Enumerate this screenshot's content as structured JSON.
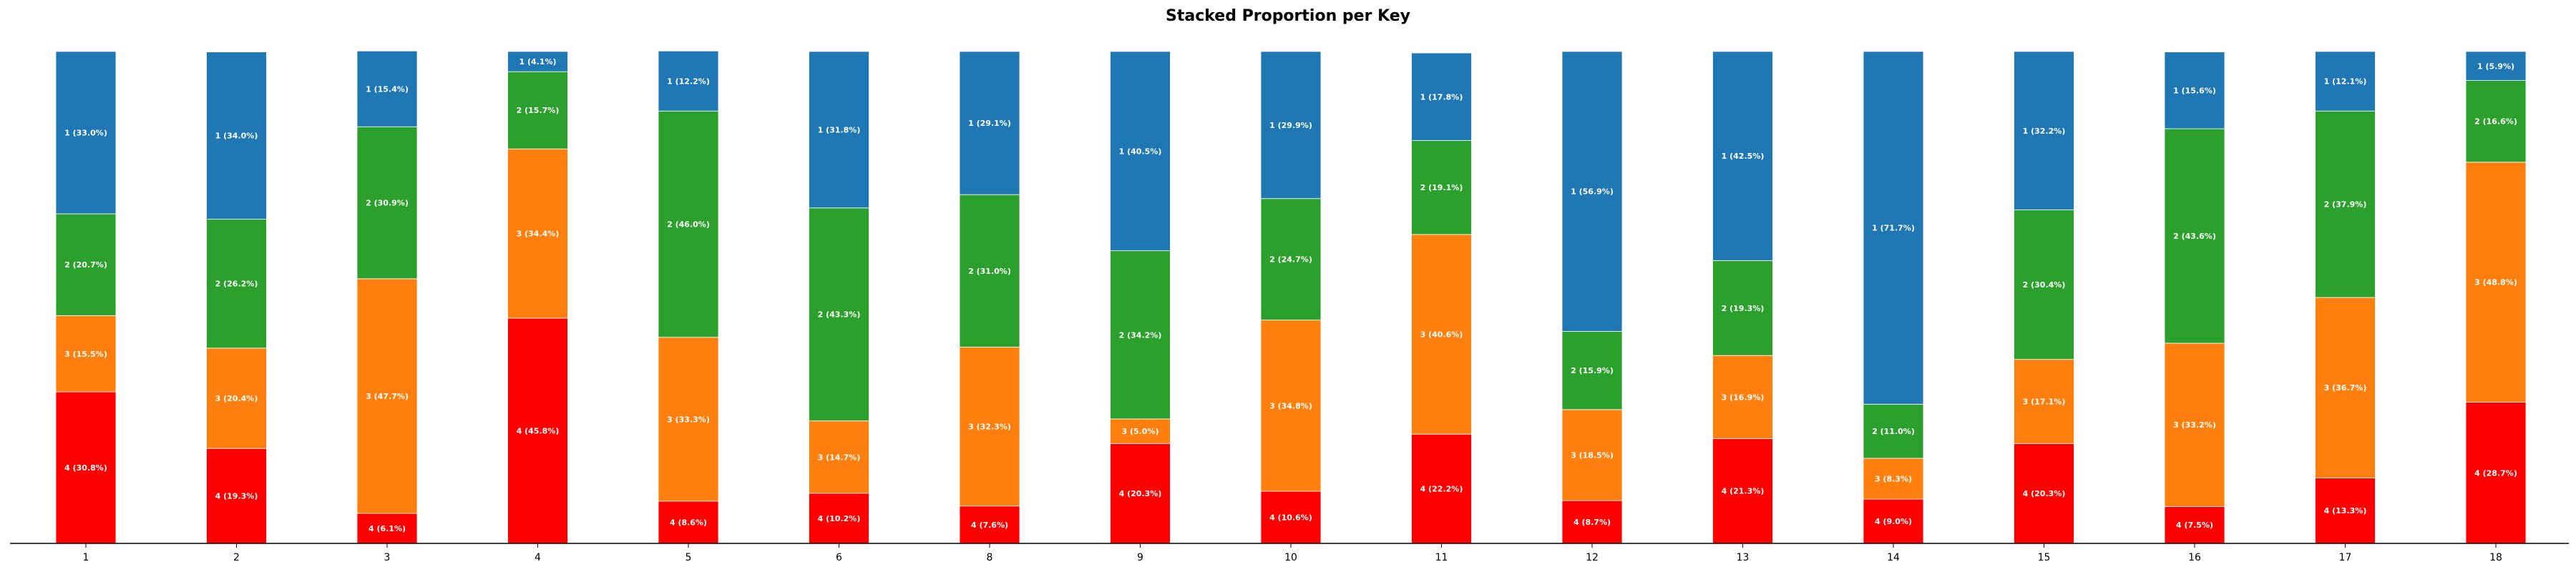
{
  "chart_data": {
    "type": "bar",
    "stacked": true,
    "title": "Stacked Proportion per Key",
    "xlabel": "",
    "ylabel": "",
    "ylim": [
      0,
      100
    ],
    "grid": false,
    "categories": [
      "1",
      "2",
      "3",
      "4",
      "5",
      "6",
      "8",
      "9",
      "10",
      "11",
      "12",
      "13",
      "14",
      "15",
      "16",
      "17",
      "18"
    ],
    "series": [
      {
        "key": "4",
        "color": "#ff0000",
        "values": [
          30.8,
          19.3,
          6.1,
          45.8,
          8.6,
          10.2,
          7.6,
          20.3,
          10.6,
          22.2,
          8.7,
          21.3,
          9.0,
          20.3,
          7.5,
          13.3,
          28.7
        ],
        "labels": [
          "4 (30.8%)",
          "4 (19.3%)",
          "4 (6.1%)",
          "4 (45.8%)",
          "4 (8.6%)",
          "4 (10.2%)",
          "4 (7.6%)",
          "4 (20.3%)",
          "4 (10.6%)",
          "4 (22.2%)",
          "4 (8.7%)",
          "4 (21.3%)",
          "4 (9.0%)",
          "4 (20.3%)",
          "4 (7.5%)",
          "4 (13.3%)",
          "4 (28.7%)"
        ]
      },
      {
        "key": "3",
        "color": "#ff7f0e",
        "values": [
          15.5,
          20.4,
          47.7,
          34.4,
          33.3,
          14.7,
          32.3,
          5.0,
          34.8,
          40.6,
          18.5,
          16.9,
          8.3,
          17.1,
          33.2,
          36.7,
          48.8
        ],
        "labels": [
          "3 (15.5%)",
          "3 (20.4%)",
          "3 (47.7%)",
          "3 (34.4%)",
          "3 (33.3%)",
          "3 (14.7%)",
          "3 (32.3%)",
          "3 (5.0%)",
          "3 (34.8%)",
          "3 (40.6%)",
          "3 (18.5%)",
          "3 (16.9%)",
          "3 (8.3%)",
          "3 (17.1%)",
          "3 (33.2%)",
          "3 (36.7%)",
          "3 (48.8%)"
        ]
      },
      {
        "key": "2",
        "color": "#2ca02c",
        "values": [
          20.7,
          26.2,
          30.9,
          15.7,
          46.0,
          43.3,
          31.0,
          34.2,
          24.7,
          19.1,
          15.9,
          19.3,
          11.0,
          30.4,
          43.6,
          37.9,
          16.6
        ],
        "labels": [
          "2 (20.7%)",
          "2 (26.2%)",
          "2 (30.9%)",
          "2 (15.7%)",
          "2 (46.0%)",
          "2 (43.3%)",
          "2 (31.0%)",
          "2 (34.2%)",
          "2 (24.7%)",
          "2 (19.1%)",
          "2 (15.9%)",
          "2 (19.3%)",
          "2 (11.0%)",
          "2 (30.4%)",
          "2 (43.6%)",
          "2 (37.9%)",
          "2 (16.6%)"
        ]
      },
      {
        "key": "1",
        "color": "#1f77b4",
        "values": [
          33.0,
          34.0,
          15.4,
          4.1,
          12.2,
          31.8,
          29.1,
          40.5,
          29.9,
          17.8,
          56.9,
          42.5,
          71.7,
          32.2,
          15.6,
          12.1,
          5.9
        ],
        "labels": [
          "1 (33.0%)",
          "1 (34.0%)",
          "1 (15.4%)",
          "1 (4.1%)",
          "1 (12.2%)",
          "1 (31.8%)",
          "1 (29.1%)",
          "1 (40.5%)",
          "1 (29.9%)",
          "1 (17.8%)",
          "1 (56.9%)",
          "1 (42.5%)",
          "1 (71.7%)",
          "1 (32.2%)",
          "1 (15.6%)",
          "1 (12.1%)",
          "1 (5.9%)"
        ]
      }
    ]
  }
}
